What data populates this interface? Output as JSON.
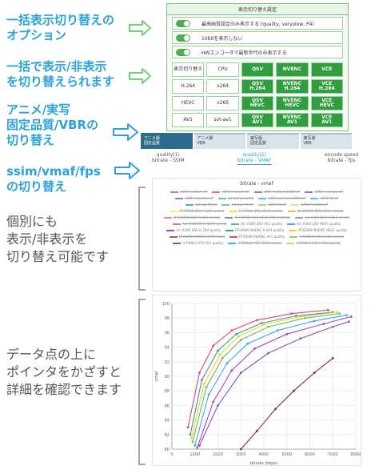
{
  "callouts": [
    {
      "text": "一括表示切り替えの\nオプション"
    },
    {
      "text": "一括で表示/非表示\nを切り替えられます"
    },
    {
      "text": "アニメ/実写\n固定品質/VBRの\n切り替え"
    },
    {
      "text": "ssim/vmaf/fps\nの切り替え"
    },
    {
      "text": "個別にも\n表示/非表示を\n切り替え可能です"
    },
    {
      "text": "データ点の上に\nポインタをかざすと\n詳細を確認できます"
    }
  ],
  "panel": {
    "title": "表示切り替え設定",
    "options": [
      {
        "label": "最高画質設定のみ表示する (quality, veryslow, P4)",
        "on": true
      },
      {
        "label": "10bitを表示しない",
        "on": true
      },
      {
        "label": "HWエンコーダで最新世代のみ表示する",
        "on": true
      }
    ],
    "grid": [
      [
        {
          "t": "表示切り替え",
          "on": false
        },
        {
          "t": "CPU",
          "on": false
        },
        {
          "t": "QSV",
          "on": true
        },
        {
          "t": "NVENC",
          "on": true
        },
        {
          "t": "VCE",
          "on": true
        }
      ],
      [
        {
          "t": "H.264",
          "on": false
        },
        {
          "t": "x264",
          "on": false
        },
        {
          "t": "QSV\nH.264",
          "on": true
        },
        {
          "t": "NVENC\nH.264",
          "on": true
        },
        {
          "t": "VCE\nH.264",
          "on": true
        }
      ],
      [
        {
          "t": "HEVC",
          "on": false
        },
        {
          "t": "x265",
          "on": false
        },
        {
          "t": "QSV\nHEVC",
          "on": true
        },
        {
          "t": "NVENC\nHEVC",
          "on": true
        },
        {
          "t": "VCE\nHEVC",
          "on": true
        }
      ],
      [
        {
          "t": "AV1",
          "on": false
        },
        {
          "t": "svt-av1",
          "on": false
        },
        {
          "t": "QSV\nAV1",
          "on": true
        },
        {
          "t": "NVENC\nAV1",
          "on": true
        },
        {
          "t": "VCE\nAV1",
          "on": true
        }
      ]
    ]
  },
  "tabs": [
    {
      "label": "アニメ版\n固定品質",
      "active": true
    },
    {
      "label": "アニメ版\nVBR",
      "active": false
    },
    {
      "label": "実写版\n固定品質",
      "active": false
    },
    {
      "label": "実写版\nVBR",
      "active": false
    }
  ],
  "subtabs": [
    {
      "label": "quality(1)\nbitrate - SSIM",
      "active": false
    },
    {
      "label": "quality(2)\nbitrate - VMAF",
      "active": true
    },
    {
      "label": "encode speed\nbitrate - fps",
      "active": false
    }
  ],
  "legend": {
    "title": "bitrate - vmaf",
    "items": [
      {
        "name": "x264 medium crf",
        "color": "#e57373",
        "hidden": true
      },
      {
        "name": "x264 medium crf",
        "color": "#f06292",
        "hidden": true
      },
      {
        "name": "x265 medium 10bit crf",
        "color": "#ba68c8",
        "hidden": true
      },
      {
        "name": "x264 veryslow crf",
        "color": "#9575cd",
        "hidden": true
      },
      {
        "name": "x265 veryslow crf",
        "color": "#7986cb",
        "hidden": true
      },
      {
        "name": "svt-av1 preset 6",
        "color": "#64b5f6",
        "hidden": true
      },
      {
        "name": "x265 veryslow 10bit crf",
        "color": "#4fc3f7",
        "hidden": true
      },
      {
        "name": "x264 P4 crf",
        "color": "#4dd0e1",
        "hidden": true
      },
      {
        "name": "svt-av1 P4 crf",
        "color": "#4db6ac",
        "hidden": true
      },
      {
        "name": "svt-av1 P4 crf",
        "color": "#81c784",
        "hidden": true
      },
      {
        "name": "x265 P4 crf",
        "color": "#aed581",
        "hidden": true
      },
      {
        "name": "x265 P4 10bit crf",
        "color": "#dce775",
        "hidden": true
      },
      {
        "name": "i7-7700K QSV H.264 normal",
        "color": "#fff176",
        "hidden": true
      },
      {
        "name": "i7-7700K QSV HEVC normal",
        "color": "#ffd54f",
        "hidden": true
      },
      {
        "name": "i9-12900K QSV HEVC normal",
        "color": "#ffb74d",
        "hidden": true
      },
      {
        "name": "i9-12900K QSV H.264 normal",
        "color": "#ff8a65",
        "hidden": true
      },
      {
        "name": "i9-12900K QSV HEVC 10bit normal",
        "color": "#a1887f",
        "hidden": true
      },
      {
        "name": "Arc A380 QSV H.264 normal",
        "color": "#90a4ae",
        "hidden": true
      },
      {
        "name": "Arc A380 QSV HEVC normal",
        "color": "#e57373",
        "hidden": true
      },
      {
        "name": "Arc A380 QSV AV1 quality",
        "color": "#66bb6a",
        "hidden": false
      },
      {
        "name": "Arc A380 QSV HEVC quality",
        "color": "#42a5f5",
        "hidden": false
      },
      {
        "name": "Arc A380 QSV H.264 quality",
        "color": "#ab47bc",
        "hidden": false
      },
      {
        "name": "RTX4080 NVENC H.264 quality",
        "color": "#26a69a",
        "hidden": false
      },
      {
        "name": "RTX4080 NVENC HEVC quality",
        "color": "#ffca28",
        "hidden": false
      },
      {
        "name": "RTX4080 NVENC HEVC 10bit",
        "color": "#8d6e63",
        "hidden": true
      },
      {
        "name": "RTX4080 NVENC AV1 quality",
        "color": "#ec407a",
        "hidden": false
      },
      {
        "name": "rx7900xt VCE H.264 normal",
        "color": "#9ccc65",
        "hidden": true
      },
      {
        "name": "rx7900xt VCE AV1 quality",
        "color": "#7e57c2",
        "hidden": false
      },
      {
        "name": "rx7900xt VCE HEVC normal",
        "color": "#29b6f6",
        "hidden": true
      },
      {
        "name": "rx7900xt VCE H.264 quality",
        "color": "#d4e157",
        "hidden": true
      }
    ]
  },
  "chart_data": {
    "type": "line",
    "title": "",
    "xlabel": "bitrate (kbps)",
    "ylabel": "vmaf",
    "xlim": [
      0,
      8000
    ],
    "ylim": [
      80,
      100
    ],
    "xticks": [
      0,
      1000,
      2000,
      3000,
      4000,
      5000,
      6000,
      7000,
      8000
    ],
    "yticks": [
      80,
      82,
      84,
      86,
      88,
      90,
      92,
      94,
      96,
      98,
      100
    ],
    "grid": true,
    "series": [
      {
        "color": "#66bb6a",
        "x": [
          900,
          1500,
          2200,
          3000,
          4200,
          5800,
          7300
        ],
        "y": [
          81.0,
          88.5,
          92.5,
          95.0,
          96.8,
          98.0,
          98.6
        ]
      },
      {
        "color": "#42a5f5",
        "x": [
          1000,
          1600,
          2400,
          3300,
          4600,
          6200,
          7600
        ],
        "y": [
          80.5,
          87.5,
          91.8,
          94.5,
          96.3,
          97.6,
          98.4
        ]
      },
      {
        "color": "#ab47bc",
        "x": [
          1100,
          1800,
          2600,
          3600,
          5000,
          6600,
          7800
        ],
        "y": [
          80.2,
          86.5,
          90.8,
          93.8,
          95.8,
          97.2,
          98.2
        ]
      },
      {
        "color": "#26a69a",
        "x": [
          800,
          1300,
          2000,
          2800,
          3900,
          5400,
          7000
        ],
        "y": [
          82.0,
          89.5,
          93.5,
          95.8,
          97.3,
          98.3,
          98.8
        ]
      },
      {
        "color": "#ffca28",
        "x": [
          850,
          1400,
          2100,
          2900,
          4000,
          5600,
          7200
        ],
        "y": [
          81.5,
          89.0,
          93.0,
          95.5,
          97.1,
          98.2,
          98.8
        ]
      },
      {
        "color": "#ec407a",
        "x": [
          700,
          1200,
          1800,
          2600,
          3700,
          5200,
          6800
        ],
        "y": [
          83.0,
          90.5,
          94.2,
          96.3,
          97.7,
          98.6,
          99.1
        ]
      },
      {
        "color": "#7e57c2",
        "x": [
          1200,
          2000,
          3000,
          4200,
          5600,
          7000,
          7700
        ],
        "y": [
          80.5,
          86.0,
          90.5,
          93.2,
          95.2,
          96.8,
          97.5
        ]
      },
      {
        "color": "#8b2c2c",
        "x": [
          3000,
          3700,
          4500,
          5300,
          6200,
          7000
        ],
        "y": [
          80.0,
          82.5,
          85.5,
          88.0,
          90.5,
          92.5
        ]
      }
    ]
  }
}
